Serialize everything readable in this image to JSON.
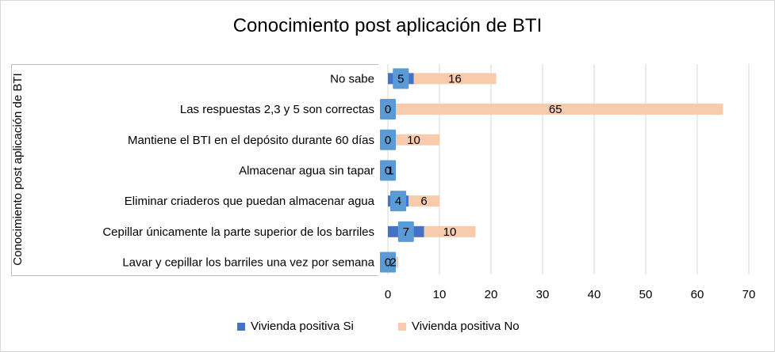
{
  "chart_data": {
    "type": "bar",
    "orientation": "horizontal",
    "stacked": true,
    "title": "Conocimiento post aplicación de  BTI",
    "ylabel": "Conocimiento post aplicación de BTI",
    "xlabel": "",
    "xlim": [
      0,
      70
    ],
    "xticks": [
      "0",
      "10",
      "20",
      "30",
      "40",
      "50",
      "60",
      "70"
    ],
    "grid": true,
    "legend_position": "bottom",
    "categories": [
      "No sabe",
      "Las respuestas 2,3 y 5 son correctas",
      "Mantiene el BTI en el depósito durante 60 días",
      "Almacenar agua sin tapar",
      "Eliminar criaderos que puedan almacenar agua",
      "Cepillar únicamente la parte superior de los barriles",
      "Lavar y cepillar los barriles una vez por semana"
    ],
    "series": [
      {
        "name": "Vivienda positiva Si",
        "color": "#4472c4",
        "values": [
          5,
          0,
          0,
          0,
          4,
          7,
          0
        ],
        "labels": [
          "5",
          "0",
          "0",
          "0",
          "4",
          "7",
          "0"
        ]
      },
      {
        "name": "Vivienda positiva No",
        "color": "#f8cbad",
        "values": [
          16,
          65,
          10,
          1,
          6,
          10,
          2
        ],
        "labels": [
          "16",
          "65",
          "10",
          "1",
          "6",
          "10",
          "2"
        ]
      }
    ],
    "label_box_color": "#5b9bd5"
  }
}
